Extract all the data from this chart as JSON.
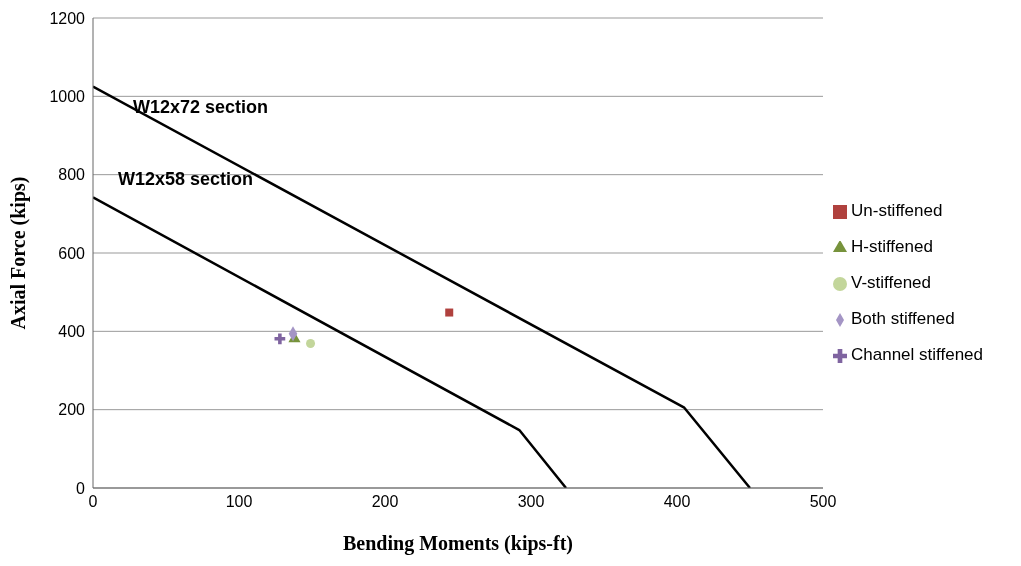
{
  "chart_data": {
    "type": "scatter",
    "xlabel": "Bending Moments (kips-ft)",
    "ylabel": "Axial Force (kips)",
    "xlim": [
      0,
      500
    ],
    "xticks": [
      0,
      100,
      200,
      300,
      400,
      500
    ],
    "ylim": [
      0,
      1200
    ],
    "yticks": [
      0,
      200,
      400,
      600,
      800,
      1000,
      1200
    ],
    "grid": "y",
    "legend": "right",
    "series": [
      {
        "type": "line",
        "color": "#000000",
        "x": [
          0,
          405,
          450
        ],
        "values": [
          1025,
          205,
          0
        ],
        "marker": "none",
        "line_style": "solid"
      },
      {
        "type": "line",
        "color": "#000000",
        "x": [
          0,
          292,
          324
        ],
        "values": [
          742,
          148,
          0
        ],
        "marker": "none",
        "line_style": "solid"
      },
      {
        "name": "Un-stiffened",
        "color": "#b0413e",
        "x": [
          244
        ],
        "values": [
          448
        ],
        "marker": "square"
      },
      {
        "name": "H-stiffened",
        "color": "#77933c",
        "x": [
          138
        ],
        "values": [
          381
        ],
        "marker": "triangle"
      },
      {
        "name": "V-stiffened",
        "color": "#c3d69b",
        "x": [
          149
        ],
        "values": [
          369
        ],
        "marker": "circle"
      },
      {
        "name": "Both stiffened",
        "color": "#a495c5",
        "x": [
          137
        ],
        "values": [
          394
        ],
        "marker": "diamond"
      },
      {
        "name": "Channel stiffened",
        "color": "#7f64a0",
        "x": [
          128
        ],
        "values": [
          381
        ],
        "marker": "cross"
      }
    ],
    "annotations": [
      "W12x72 section",
      "W12x58 section"
    ]
  }
}
